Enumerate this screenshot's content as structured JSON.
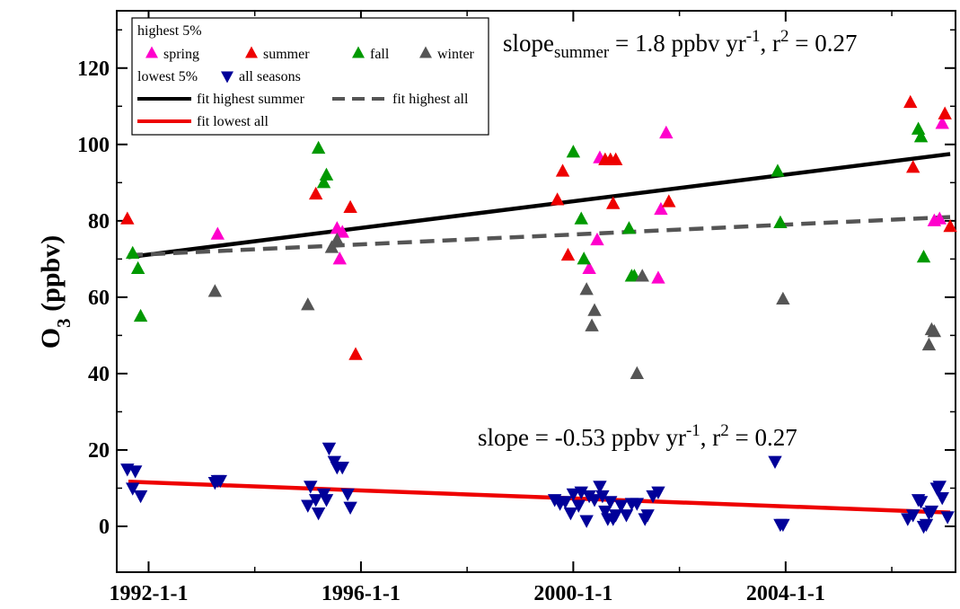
{
  "chart_data": {
    "type": "scatter",
    "title": "",
    "xlabel": "",
    "ylabel": "O3 (ppbv)",
    "ylabel_main": "O",
    "ylabel_sub": "3",
    "ylabel_rest": " (ppbv)",
    "xlim": [
      1991.4,
      2007.2
    ],
    "ylim": [
      -12,
      135
    ],
    "xticks": [
      {
        "value": 1992,
        "label": "1992-1-1"
      },
      {
        "value": 1996,
        "label": "1996-1-1"
      },
      {
        "value": 2000,
        "label": "2000-1-1"
      },
      {
        "value": 2004,
        "label": "2004-1-1"
      }
    ],
    "yticks": [
      0,
      20,
      40,
      60,
      80,
      100,
      120
    ],
    "grid": false,
    "legend_position": "top-left",
    "legend": {
      "group_highest": "highest 5%",
      "group_lowest": "lowest 5%",
      "entries": [
        {
          "key": "spring",
          "label": "spring"
        },
        {
          "key": "summer",
          "label": "summer"
        },
        {
          "key": "fall",
          "label": "fall"
        },
        {
          "key": "winter",
          "label": "winter"
        },
        {
          "key": "lowest",
          "label": "all seasons"
        },
        {
          "key": "fit_summer",
          "label": "fit highest summer"
        },
        {
          "key": "fit_all",
          "label": "fit highest all"
        },
        {
          "key": "fit_lowest",
          "label": "fit lowest all"
        }
      ]
    },
    "annotations": {
      "upper": {
        "pre": "slope",
        "sub": "summer",
        "mid": " = 1.8 ppbv yr",
        "sup1": "-1",
        "mid2": ", r",
        "sup2": "2",
        "post": " = 0.27"
      },
      "lower": {
        "pre": "slope = -0.53 ppbv yr",
        "sup1": "-1",
        "mid2": ", r",
        "sup2": "2",
        "post": " = 0.27"
      }
    },
    "colors": {
      "spring": "#ff00cc",
      "summer": "#ee0000",
      "fall": "#009900",
      "winter": "#555555",
      "lowest": "#000099",
      "fit_summer": "#000000",
      "fit_all": "#555555",
      "fit_lowest": "#ee0000"
    },
    "series": [
      {
        "key": "spring",
        "name": "spring",
        "marker": "triangle-up",
        "points": [
          [
            1993.3,
            76.5
          ],
          [
            1995.55,
            78
          ],
          [
            1995.6,
            70
          ],
          [
            1995.65,
            77
          ],
          [
            2000.3,
            67.5
          ],
          [
            2000.45,
            75
          ],
          [
            2000.5,
            96.5
          ],
          [
            2001.6,
            65
          ],
          [
            2001.65,
            83
          ],
          [
            2001.75,
            103
          ],
          [
            2006.8,
            80
          ],
          [
            2006.9,
            80.5
          ],
          [
            2006.95,
            105.5
          ]
        ]
      },
      {
        "key": "summer",
        "name": "summer",
        "marker": "triangle-up",
        "points": [
          [
            1991.6,
            80.5
          ],
          [
            1995.15,
            87
          ],
          [
            1995.8,
            83.5
          ],
          [
            1995.9,
            45
          ],
          [
            1999.7,
            85.5
          ],
          [
            1999.8,
            93
          ],
          [
            1999.9,
            71
          ],
          [
            2000.6,
            96
          ],
          [
            2000.7,
            96
          ],
          [
            2000.75,
            84.5
          ],
          [
            2000.8,
            96
          ],
          [
            2001.8,
            85
          ],
          [
            2006.35,
            111
          ],
          [
            2006.4,
            94
          ],
          [
            2007.0,
            108
          ],
          [
            2007.1,
            78.5
          ]
        ]
      },
      {
        "key": "fall",
        "name": "fall",
        "marker": "triangle-up",
        "points": [
          [
            1991.7,
            71.5
          ],
          [
            1991.8,
            67.5
          ],
          [
            1991.85,
            55
          ],
          [
            1995.2,
            99
          ],
          [
            1995.3,
            90
          ],
          [
            1995.35,
            92
          ],
          [
            2000.0,
            98
          ],
          [
            2000.15,
            80.5
          ],
          [
            2000.2,
            70
          ],
          [
            2001.05,
            78
          ],
          [
            2001.1,
            65.5
          ],
          [
            2001.15,
            65.5
          ],
          [
            2003.85,
            93
          ],
          [
            2003.9,
            79.5
          ],
          [
            2006.5,
            104
          ],
          [
            2006.55,
            102
          ],
          [
            2006.6,
            70.5
          ]
        ]
      },
      {
        "key": "winter",
        "name": "winter",
        "marker": "triangle-up",
        "points": [
          [
            1993.25,
            61.5
          ],
          [
            1995.0,
            58
          ],
          [
            1995.45,
            73
          ],
          [
            1995.55,
            75
          ],
          [
            2000.25,
            62
          ],
          [
            2000.35,
            52.5
          ],
          [
            2000.4,
            56.5
          ],
          [
            2001.2,
            40
          ],
          [
            2001.3,
            65.5
          ],
          [
            2003.95,
            59.5
          ],
          [
            2006.7,
            47.5
          ],
          [
            2006.75,
            51.5
          ],
          [
            2006.8,
            51
          ]
        ]
      },
      {
        "key": "lowest",
        "name": "all seasons",
        "marker": "triangle-down",
        "points": [
          [
            1991.6,
            15
          ],
          [
            1991.7,
            10
          ],
          [
            1991.75,
            14.5
          ],
          [
            1991.85,
            8
          ],
          [
            1993.25,
            11.5
          ],
          [
            1993.3,
            12
          ],
          [
            1993.35,
            12
          ],
          [
            1995.0,
            5.5
          ],
          [
            1995.05,
            10.5
          ],
          [
            1995.15,
            7
          ],
          [
            1995.2,
            3.5
          ],
          [
            1995.3,
            8.5
          ],
          [
            1995.35,
            7
          ],
          [
            1995.4,
            20.5
          ],
          [
            1995.5,
            17
          ],
          [
            1995.55,
            15.5
          ],
          [
            1995.65,
            15.5
          ],
          [
            1995.75,
            8.5
          ],
          [
            1995.8,
            5
          ],
          [
            1999.65,
            7
          ],
          [
            1999.75,
            6
          ],
          [
            1999.85,
            6.5
          ],
          [
            1999.95,
            3.5
          ],
          [
            2000.0,
            8.5
          ],
          [
            2000.1,
            5.5
          ],
          [
            2000.15,
            9
          ],
          [
            2000.25,
            1.5
          ],
          [
            2000.3,
            8
          ],
          [
            2000.4,
            7
          ],
          [
            2000.5,
            10.5
          ],
          [
            2000.55,
            8
          ],
          [
            2000.6,
            4
          ],
          [
            2000.65,
            2
          ],
          [
            2000.7,
            6.5
          ],
          [
            2000.75,
            2
          ],
          [
            2000.8,
            3
          ],
          [
            2000.9,
            5.5
          ],
          [
            2001.0,
            3
          ],
          [
            2001.1,
            6
          ],
          [
            2001.2,
            6
          ],
          [
            2001.35,
            2
          ],
          [
            2001.4,
            3
          ],
          [
            2001.5,
            8
          ],
          [
            2001.6,
            9
          ],
          [
            2003.8,
            17
          ],
          [
            2003.9,
            0.5
          ],
          [
            2003.95,
            0.5
          ],
          [
            2006.3,
            2
          ],
          [
            2006.4,
            3
          ],
          [
            2006.5,
            7
          ],
          [
            2006.55,
            6.5
          ],
          [
            2006.6,
            0
          ],
          [
            2006.65,
            0.5
          ],
          [
            2006.7,
            3.5
          ],
          [
            2006.75,
            4
          ],
          [
            2006.85,
            10
          ],
          [
            2006.9,
            10.5
          ],
          [
            2006.95,
            7.5
          ],
          [
            2007.05,
            2.5
          ]
        ]
      }
    ],
    "fits": [
      {
        "key": "fit_summer",
        "name": "fit highest summer",
        "style": "solid",
        "x": [
          1991.62,
          2007.1
        ],
        "y": [
          70.5,
          97.5
        ]
      },
      {
        "key": "fit_all",
        "name": "fit highest all",
        "style": "dashed",
        "x": [
          1991.62,
          2007.1
        ],
        "y": [
          71,
          81
        ]
      },
      {
        "key": "fit_lowest",
        "name": "fit lowest all",
        "style": "solid",
        "x": [
          1991.62,
          2007.1
        ],
        "y": [
          11.7,
          3.6
        ]
      }
    ]
  }
}
